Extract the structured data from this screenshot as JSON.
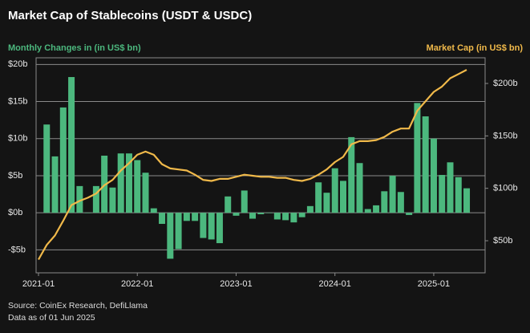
{
  "chart_data": {
    "type": "bar+line",
    "title": "Market Cap of Stablecoins (USDT & USDC)",
    "y_label": "Monthly Changes in (in US$ bn)",
    "y2_label": "Market Cap (in US$ bn)",
    "source": "Source: CoinEx Research, DefiLlama",
    "note": "Data as of 01 Jun 2025",
    "x": [
      "2021-01",
      "2021-02",
      "2021-03",
      "2021-04",
      "2021-05",
      "2021-06",
      "2021-07",
      "2021-08",
      "2021-09",
      "2021-10",
      "2021-11",
      "2021-12",
      "2022-01",
      "2022-02",
      "2022-03",
      "2022-04",
      "2022-05",
      "2022-06",
      "2022-07",
      "2022-08",
      "2022-09",
      "2022-10",
      "2022-11",
      "2022-12",
      "2023-01",
      "2023-02",
      "2023-03",
      "2023-04",
      "2023-05",
      "2023-06",
      "2023-07",
      "2023-08",
      "2023-09",
      "2023-10",
      "2023-11",
      "2023-12",
      "2024-01",
      "2024-02",
      "2024-03",
      "2024-04",
      "2024-05",
      "2024-06",
      "2024-07",
      "2024-08",
      "2024-09",
      "2024-10",
      "2024-11",
      "2024-12",
      "2025-01",
      "2025-02",
      "2025-03",
      "2025-04",
      "2025-05"
    ],
    "xticks": [
      "2021-01",
      "2022-01",
      "2023-01",
      "2024-01",
      "2025-01"
    ],
    "series": [
      {
        "name": "Monthly Changes in (in US$ bn)",
        "type": "bar",
        "color": "#4cb87e",
        "values": [
          null,
          11.9,
          7.6,
          14.2,
          18.3,
          3.6,
          0,
          3.6,
          7.7,
          3.4,
          8.0,
          8.0,
          7.1,
          5.4,
          0.6,
          -1.5,
          -6.2,
          -4.9,
          -1.1,
          -1.1,
          -3.4,
          -3.6,
          -4.1,
          2.2,
          -0.4,
          3.0,
          -0.8,
          -0.2,
          0,
          -0.9,
          -1.0,
          -1.3,
          -0.6,
          0.9,
          4.1,
          2.7,
          6.0,
          4.3,
          10.2,
          6.7,
          0.5,
          1.0,
          2.9,
          5.0,
          2.8,
          -0.3,
          14.8,
          13.0,
          10.0,
          5.1,
          6.8,
          4.8,
          3.3
        ]
      },
      {
        "name": "Market Cap (in US$ bn)",
        "type": "line",
        "axis": "y2",
        "color": "#f0b94a",
        "values": [
          32,
          46,
          55,
          69,
          84,
          88,
          91,
          95,
          103,
          108,
          117,
          124,
          132,
          135,
          132,
          123,
          119,
          118,
          117,
          113,
          108,
          107,
          109,
          109,
          111,
          113,
          112,
          111,
          111,
          110,
          110,
          108,
          107,
          109,
          113,
          118,
          125,
          130,
          142,
          145,
          145,
          146,
          149,
          154,
          157,
          157,
          174,
          183,
          192,
          197,
          205,
          209,
          213
        ]
      }
    ],
    "ylim": [
      -8.1,
      20.9
    ],
    "yticks": [
      {
        "value": -5,
        "label": "-$5b"
      },
      {
        "value": 0,
        "label": "$0b"
      },
      {
        "value": 5,
        "label": "$5b"
      },
      {
        "value": 10,
        "label": "$10b"
      },
      {
        "value": 15,
        "label": "$15b"
      },
      {
        "value": 20,
        "label": "$20b"
      }
    ],
    "y2lim": [
      19.4,
      224.5
    ],
    "y2ticks": [
      {
        "value": 50,
        "label": "$50b"
      },
      {
        "value": 100,
        "label": "$100b"
      },
      {
        "value": 150,
        "label": "$150b"
      },
      {
        "value": 200,
        "label": "$200b"
      }
    ],
    "grid": true
  }
}
